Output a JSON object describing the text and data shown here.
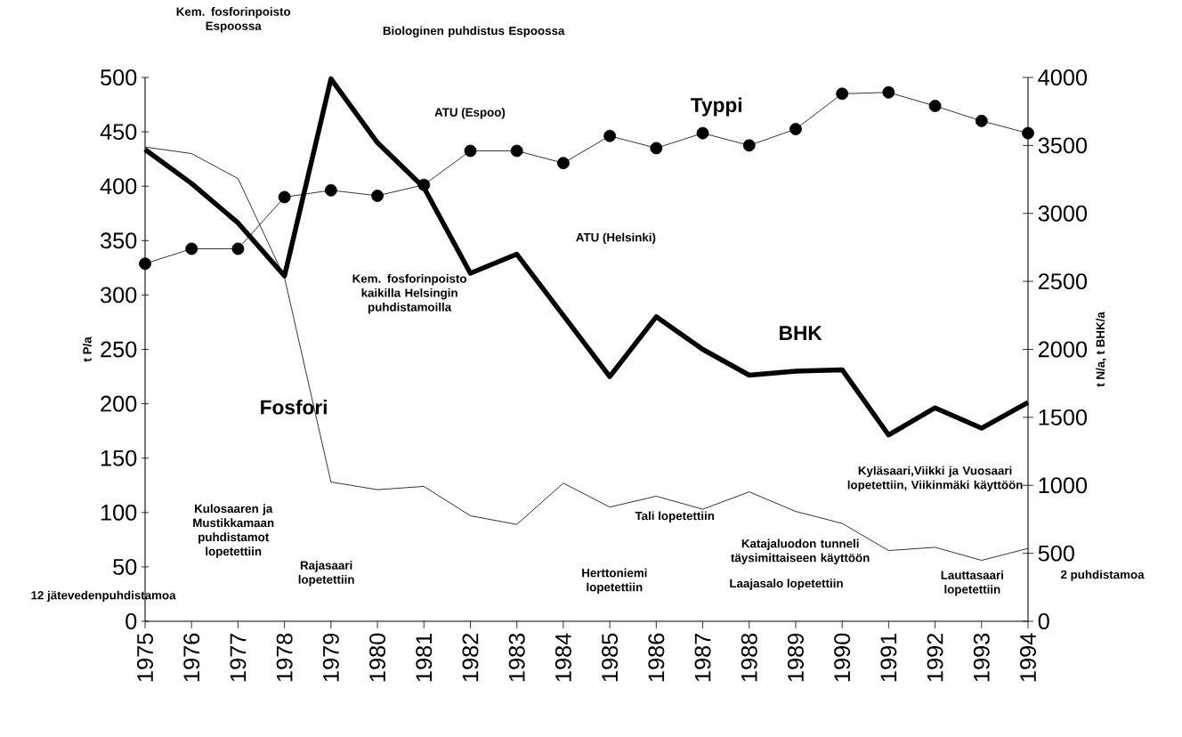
{
  "chart_data": {
    "type": "line",
    "x": [
      1975,
      1976,
      1977,
      1978,
      1979,
      1980,
      1981,
      1982,
      1983,
      1984,
      1985,
      1986,
      1987,
      1988,
      1989,
      1990,
      1991,
      1992,
      1993,
      1994
    ],
    "xlim": [
      1975,
      1994
    ],
    "xticks": [
      1975,
      1976,
      1977,
      1978,
      1979,
      1980,
      1981,
      1982,
      1983,
      1984,
      1985,
      1986,
      1987,
      1988,
      1989,
      1990,
      1991,
      1992,
      1993,
      1994
    ],
    "ylim": [
      0,
      500
    ],
    "yticks": [
      0,
      50,
      100,
      150,
      200,
      250,
      300,
      350,
      400,
      450,
      500
    ],
    "y2lim": [
      0,
      4000
    ],
    "y2ticks": [
      0,
      500,
      1000,
      1500,
      2000,
      2500,
      3000,
      3500,
      4000
    ],
    "ylabel": "t P/a",
    "y2label": "t N/a, t BHK/a",
    "series": [
      {
        "name": "Fosfori",
        "color": "#000000",
        "marker": "none",
        "values": [
          436,
          430,
          407,
          316,
          128,
          121,
          124,
          97,
          89,
          127,
          105,
          115,
          103,
          119,
          101,
          90,
          65,
          68,
          56,
          67
        ]
      },
      {
        "name": "Typpi",
        "color": "#000000",
        "marker": "circle",
        "axis": "y2",
        "values": [
          2630,
          2740,
          2740,
          3120,
          3170,
          3130,
          3210,
          3460,
          3460,
          3370,
          3570,
          3480,
          3590,
          3500,
          3620,
          3880,
          3890,
          3790,
          3680,
          3590
        ]
      },
      {
        "name": "BHK",
        "color": "#000000",
        "marker": "none",
        "axis": "y2",
        "values": [
          3470,
          3220,
          2930,
          2540,
          3990,
          3520,
          3190,
          2560,
          2700,
          2250,
          1800,
          2240,
          2000,
          1810,
          1840,
          1850,
          1370,
          1570,
          1420,
          1610
        ]
      }
    ],
    "annotations": [
      "Kem. fosforinpoisto Espoossa",
      "Biologinen puhdistus Espoossa",
      "ATU (Espoo)",
      "ATU (Helsinki)",
      "Kem. fosforinpoisto kaikilla Helsingin puhdistamoilla",
      "Kulosaaren ja Mustikkamaan puhdistamot lopetettiin",
      "12 jätevedenpuhdistamoa",
      "Rajasaari lopetettiin",
      "Herttoniemi lopetettiin",
      "Tali lopetettiin",
      "Katajaluodon tunneli täysimittaiseen käyttöön",
      "Laajasalo lopetettiin",
      "Kyläsaari,Viikki ja Vuosaari lopetettiin, Viikinmäki käyttöön",
      "Lauttasaari lopetettiin",
      "2 puhdistamoa"
    ]
  }
}
